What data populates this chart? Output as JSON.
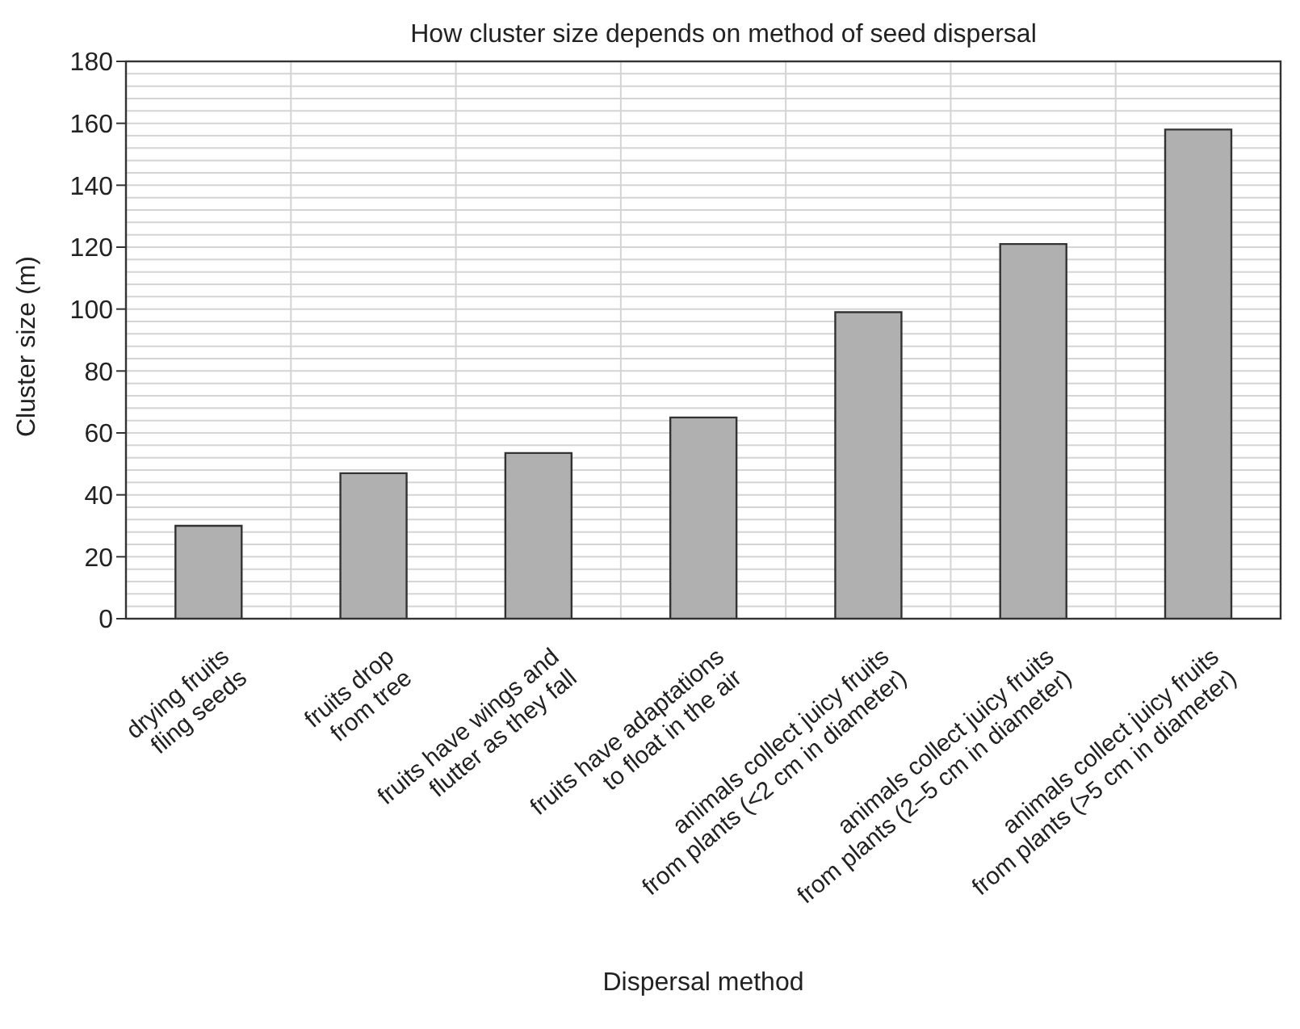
{
  "chart_data": {
    "type": "bar",
    "title": "How cluster size depends on method of seed dispersal",
    "xlabel": "Dispersal method",
    "ylabel": "Cluster size (m)",
    "categories": [
      "drying fruits\nfling seeds",
      "fruits drop\nfrom tree",
      "fruits have wings and\nflutter as they fall",
      "fruits have adaptations\nto float in the air",
      "animals collect juicy fruits\nfrom plants (<2 cm in diameter)",
      "animals collect juicy fruits\nfrom plants (2–5 cm in diameter)",
      "animals collect juicy fruits\nfrom plants (>5 cm in diameter)"
    ],
    "values": [
      30,
      47,
      53.5,
      65,
      99,
      121,
      158
    ],
    "color": "#b0b0b0",
    "ylim": [
      0,
      180
    ],
    "yticks": [
      0,
      20,
      40,
      60,
      80,
      100,
      120,
      140,
      160,
      180
    ],
    "grid": true
  }
}
